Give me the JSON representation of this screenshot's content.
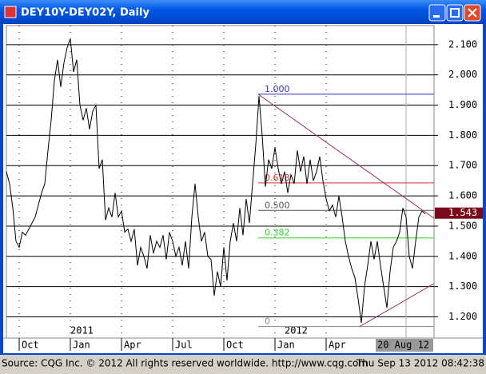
{
  "chart_data": {
    "type": "line",
    "title": "DEY10Y-DEY02Y, Daily",
    "series": [
      {
        "name": "DEY10Y-DEY02Y",
        "color": "#000000",
        "values": [
          1.68,
          1.64,
          1.56,
          1.45,
          1.43,
          1.48,
          1.47,
          1.49,
          1.51,
          1.53,
          1.57,
          1.61,
          1.64,
          1.75,
          1.85,
          1.98,
          2.05,
          1.96,
          2.04,
          2.09,
          2.12,
          2.01,
          2.05,
          1.9,
          1.85,
          1.89,
          1.82,
          1.88,
          1.9,
          1.69,
          1.72,
          1.52,
          1.56,
          1.53,
          1.61,
          1.53,
          1.55,
          1.48,
          1.49,
          1.45,
          1.49,
          1.37,
          1.43,
          1.4,
          1.36,
          1.47,
          1.41,
          1.45,
          1.43,
          1.47,
          1.39,
          1.48,
          1.45,
          1.4,
          1.43,
          1.37,
          1.45,
          1.36,
          1.53,
          1.64,
          1.53,
          1.45,
          1.48,
          1.4,
          1.39,
          1.27,
          1.35,
          1.3,
          1.43,
          1.32,
          1.45,
          1.51,
          1.45,
          1.56,
          1.47,
          1.59,
          1.51,
          1.64,
          1.77,
          1.93,
          1.8,
          1.63,
          1.72,
          1.69,
          1.76,
          1.69,
          1.64,
          1.68,
          1.61,
          1.67,
          1.64,
          1.75,
          1.68,
          1.73,
          1.64,
          1.72,
          1.65,
          1.68,
          1.73,
          1.65,
          1.59,
          1.55,
          1.57,
          1.53,
          1.6,
          1.53,
          1.45,
          1.4,
          1.36,
          1.33,
          1.26,
          1.18,
          1.3,
          1.37,
          1.45,
          1.39,
          1.45,
          1.37,
          1.3,
          1.23,
          1.35,
          1.43,
          1.45,
          1.48,
          1.56,
          1.53,
          1.4,
          1.36,
          1.45,
          1.53,
          1.55,
          1.54
        ]
      }
    ],
    "xlim": [
      0,
      133.75
    ],
    "xticks": [
      {
        "value": 4,
        "label": "Oct"
      },
      {
        "value": 20,
        "label": "Jan"
      },
      {
        "value": 36,
        "label": "Apr"
      },
      {
        "value": 52,
        "label": "Jul"
      },
      {
        "value": 68,
        "label": "Oct"
      },
      {
        "value": 84,
        "label": "Jan"
      },
      {
        "value": 100,
        "label": "Apr"
      }
    ],
    "year_labels": [
      {
        "value": 20,
        "label": "2011"
      },
      {
        "value": 87,
        "label": "2012"
      }
    ],
    "cursor": {
      "value": 125,
      "label": "20 Aug 12"
    },
    "ylim": [
      1.13,
      2.163
    ],
    "yticks": [
      {
        "value": 1.2,
        "label": "1.200"
      },
      {
        "value": 1.3,
        "label": "1.300"
      },
      {
        "value": 1.4,
        "label": "1.400"
      },
      {
        "value": 1.5,
        "label": "1.500"
      },
      {
        "value": 1.6,
        "label": "1.600"
      },
      {
        "value": 1.7,
        "label": "1.700"
      },
      {
        "value": 1.8,
        "label": "1.800"
      },
      {
        "value": 1.9,
        "label": "1.900"
      },
      {
        "value": 2.0,
        "label": "2.000"
      },
      {
        "value": 2.1,
        "label": "2.100"
      }
    ],
    "grid": true,
    "last_value": 1.543,
    "fib_start": 78.75,
    "fib_levels": [
      {
        "label": "1.000",
        "value": 1.936,
        "color": "#3333bb"
      },
      {
        "label": "0.618",
        "value": 1.643,
        "color": "#cc3333"
      },
      {
        "label": "0.500",
        "value": 1.552,
        "color": "#555555"
      },
      {
        "label": "0.382",
        "value": 1.461,
        "color": "#33cc33"
      },
      {
        "label": "0",
        "value": 1.168,
        "color": "#888888"
      }
    ],
    "trendlines": [
      {
        "x": [
          78.75,
          133.75
        ],
        "y": [
          1.936,
          1.526
        ],
        "color": "#993366"
      },
      {
        "x": [
          110.5,
          133.75
        ],
        "y": [
          1.168,
          1.31
        ],
        "color": "#993366"
      }
    ],
    "source": "Source: CQG Inc. © 2012 All rights reserved worldwide. http://www.cqg.com",
    "timestamp": "Thu Sep 13 2012 08:42:38"
  }
}
